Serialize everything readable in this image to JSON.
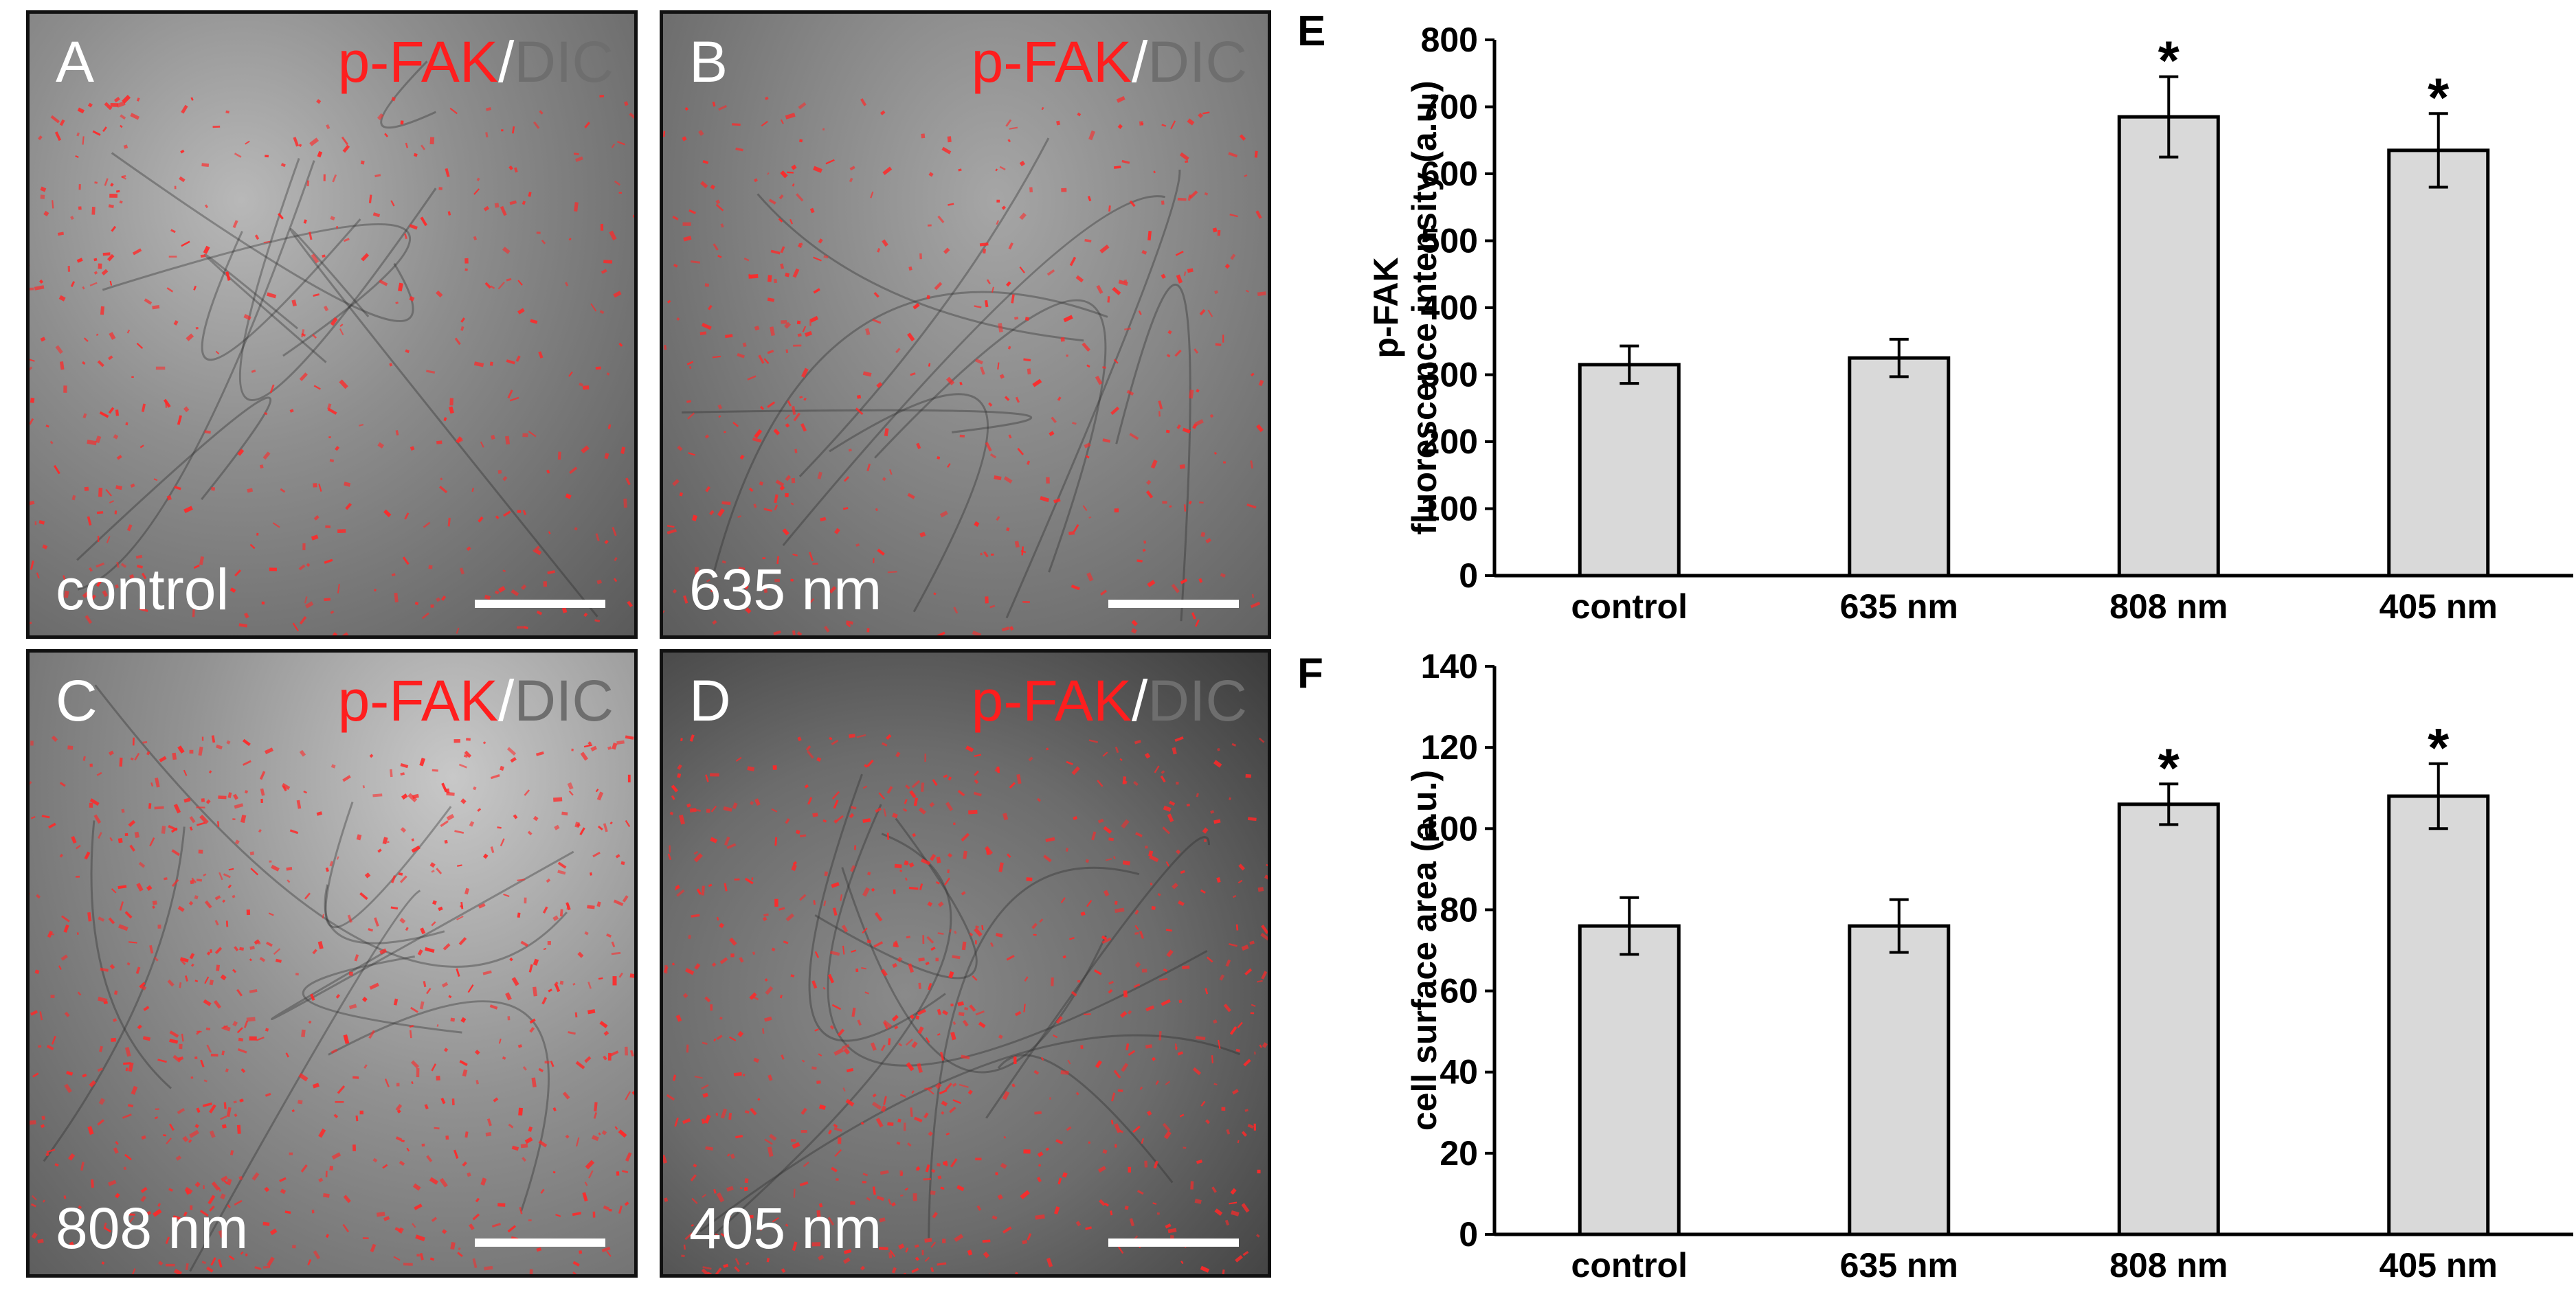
{
  "micrographs": [
    {
      "letter": "A",
      "stain_red": "p-FAK",
      "stain_sep": "/",
      "stain_gray": "DIC",
      "condition": "control"
    },
    {
      "letter": "B",
      "stain_red": "p-FAK",
      "stain_sep": "/",
      "stain_gray": "DIC",
      "condition": "635 nm"
    },
    {
      "letter": "C",
      "stain_red": "p-FAK",
      "stain_sep": "/",
      "stain_gray": "DIC",
      "condition": "808 nm"
    },
    {
      "letter": "D",
      "stain_red": "p-FAK",
      "stain_sep": "/",
      "stain_gray": "DIC",
      "condition": "405 nm"
    }
  ],
  "chart_data": [
    {
      "panel": "E",
      "type": "bar",
      "categories": [
        "control",
        "635 nm",
        "808 nm",
        "405 nm"
      ],
      "values": [
        315,
        325,
        685,
        635
      ],
      "errors": [
        28,
        28,
        60,
        55
      ],
      "significance": [
        "",
        "",
        "*",
        "*"
      ],
      "ylabel_lines": [
        "p-FAK",
        "fluorescence intensity (a.u.)"
      ],
      "ylim": [
        0,
        800
      ],
      "yticks": [
        0,
        100,
        200,
        300,
        400,
        500,
        600,
        700,
        800
      ],
      "bar_color": "#d9d9d9",
      "grid": false
    },
    {
      "panel": "F",
      "type": "bar",
      "categories": [
        "control",
        "635 nm",
        "808 nm",
        "405 nm"
      ],
      "values": [
        76,
        76,
        106,
        108
      ],
      "errors": [
        7,
        6.5,
        5,
        8
      ],
      "significance": [
        "",
        "",
        "*",
        "*"
      ],
      "ylabel_lines": [
        "cell surface area (a.u.)"
      ],
      "ylim": [
        0,
        140
      ],
      "yticks": [
        0,
        20,
        40,
        60,
        80,
        100,
        120,
        140
      ],
      "bar_color": "#d9d9d9",
      "grid": false
    }
  ]
}
